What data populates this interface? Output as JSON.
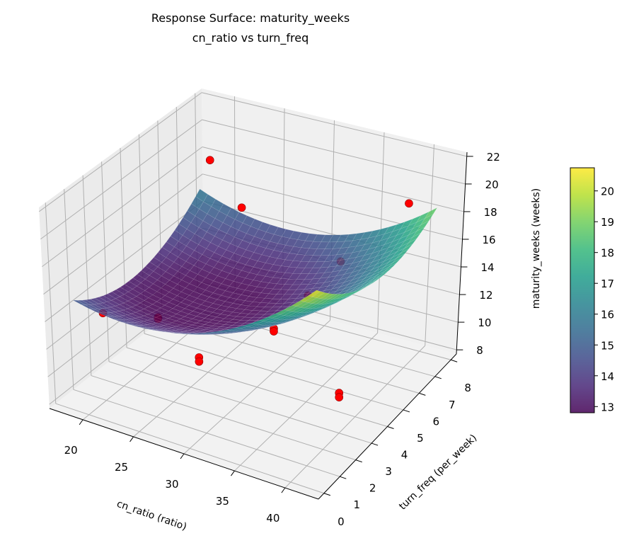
{
  "chart_data": {
    "type": "surface3d",
    "title": "Response Surface: maturity_weeks",
    "subtitle": "cn_ratio vs turn_freq",
    "xlabel": "cn_ratio (ratio)",
    "ylabel": "turn_freq (per_week)",
    "zlabel": "maturity_weeks (weeks)",
    "xlim": [
      16.7,
      43.3
    ],
    "ylim": [
      -0.35,
      8.35
    ],
    "zlim": [
      7.7,
      22.3
    ],
    "x_ticks": [
      "20",
      "25",
      "30",
      "35",
      "40"
    ],
    "y_ticks": [
      "0",
      "1",
      "2",
      "3",
      "4",
      "5",
      "6",
      "7",
      "8"
    ],
    "z_ticks": [
      "8",
      "10",
      "12",
      "14",
      "16",
      "18",
      "20",
      "22"
    ],
    "colormap": "viridis",
    "colorbar": {
      "range": [
        12.8,
        20.75
      ],
      "ticks": [
        "13",
        "14",
        "15",
        "16",
        "17",
        "18",
        "19",
        "20"
      ]
    },
    "surface": {
      "x_range": [
        18,
        42
      ],
      "y_range": [
        0.5,
        7.5
      ],
      "model": "quadratic",
      "corner_values": {
        "low_x_low_y": 15.0,
        "high_x_low_y": 20.7,
        "low_x_high_y": 16.0,
        "high_x_high_y": 19.0
      },
      "min_value": 12.8,
      "alpha": 0.85
    },
    "points": {
      "color": "#ff0000",
      "values": [
        {
          "x": 20,
          "y": 1,
          "z": 14.0
        },
        {
          "x": 20,
          "y": 4,
          "z": 10.6
        },
        {
          "x": 20,
          "y": 4,
          "z": 10.5
        },
        {
          "x": 25,
          "y": 3.5,
          "z": 9.3
        },
        {
          "x": 25,
          "y": 3.5,
          "z": 9.0
        },
        {
          "x": 30,
          "y": 5,
          "z": 10.8
        },
        {
          "x": 30,
          "y": 5,
          "z": 10.6
        },
        {
          "x": 30,
          "y": 7,
          "z": 11.0
        },
        {
          "x": 40,
          "y": 3,
          "z": 10.5
        },
        {
          "x": 40,
          "y": 3,
          "z": 10.2
        },
        {
          "x": 20,
          "y": 7,
          "z": 19.0
        },
        {
          "x": 25,
          "y": 6,
          "z": 17.5
        },
        {
          "x": 35,
          "y": 6,
          "z": 15.5
        },
        {
          "x": 40,
          "y": 7,
          "z": 19.5
        }
      ]
    }
  }
}
